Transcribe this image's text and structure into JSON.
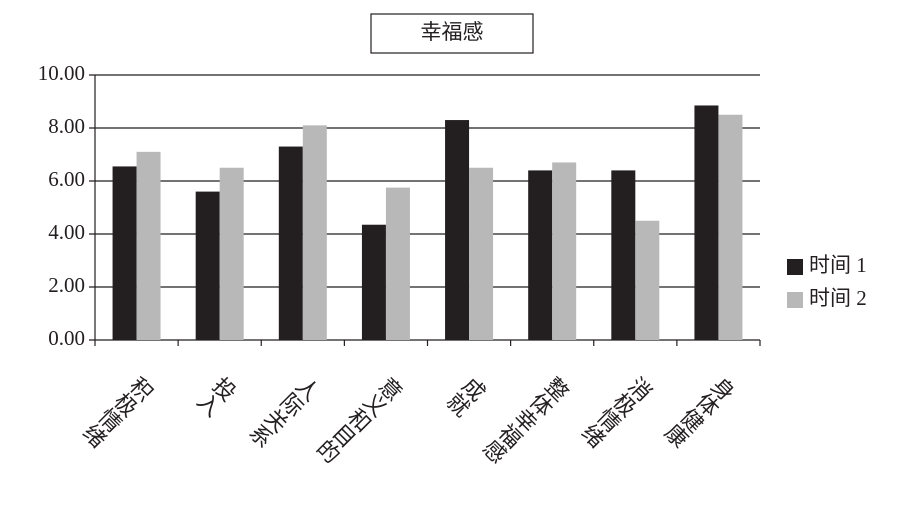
{
  "chart_data": {
    "type": "bar",
    "title": "幸福感",
    "categories": [
      "积极情绪",
      "投入",
      "人际关系",
      "意义和目的",
      "成就",
      "整体幸福感",
      "消极情绪",
      "身体健康"
    ],
    "series": [
      {
        "name": "时间 1",
        "color": "#231f20",
        "values": [
          6.55,
          5.6,
          7.3,
          4.35,
          8.3,
          6.4,
          6.4,
          8.85
        ]
      },
      {
        "name": "时间 2",
        "color": "#b8b8b8",
        "values": [
          7.1,
          6.5,
          8.1,
          5.75,
          6.5,
          6.7,
          4.5,
          8.5
        ]
      }
    ],
    "ylim": [
      0,
      10
    ],
    "yticks": [
      {
        "value": 0,
        "label": "0.00"
      },
      {
        "value": 2,
        "label": "2.00"
      },
      {
        "value": 4,
        "label": "4.00"
      },
      {
        "value": 6,
        "label": "6.00"
      },
      {
        "value": 8,
        "label": "8.00"
      },
      {
        "value": 10,
        "label": "10.00"
      }
    ],
    "grid": true,
    "legend": "right"
  }
}
